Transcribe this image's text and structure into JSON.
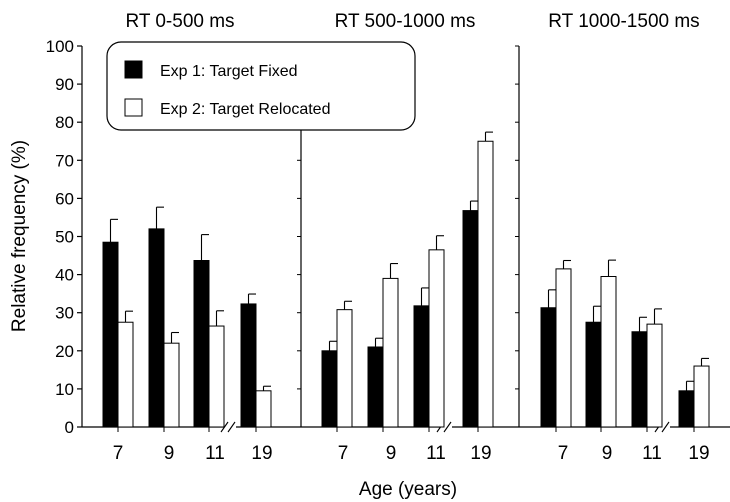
{
  "chart_data": {
    "type": "bar",
    "xlabel": "Age (years)",
    "ylabel": "Relative frequency (%)",
    "ylim": [
      0,
      100
    ],
    "yticks": [
      0,
      10,
      20,
      30,
      40,
      50,
      60,
      70,
      80,
      90,
      100
    ],
    "legend": {
      "position": "top-left",
      "entries": [
        {
          "label": "Exp 1: Target Fixed",
          "color": "#000000"
        },
        {
          "label": "Exp 2: Target Relocated",
          "color": "#ffffff"
        }
      ]
    },
    "series_colors": [
      "#000000",
      "#ffffff"
    ],
    "panels": [
      {
        "title": "RT 0-500 ms",
        "categories": [
          "7",
          "9",
          "11",
          "19"
        ],
        "series": [
          {
            "values": [
              48.5,
              52,
              43.7,
              32.3
            ],
            "error": [
              6,
              5.7,
              6.8,
              2.6
            ]
          },
          {
            "values": [
              27.5,
              22,
              26.5,
              9.5
            ],
            "error": [
              2.9,
              2.8,
              4,
              1.2
            ]
          }
        ]
      },
      {
        "title": "RT 500-1000 ms",
        "categories": [
          "7",
          "9",
          "11",
          "19"
        ],
        "series": [
          {
            "values": [
              20,
              21,
              31.8,
              56.8
            ],
            "error": [
              2.5,
              2.3,
              4.7,
              2.5
            ]
          },
          {
            "values": [
              30.8,
              39,
              46.5,
              75
            ],
            "error": [
              2.2,
              3.9,
              3.7,
              2.4
            ]
          }
        ]
      },
      {
        "title": "RT 1000-1500 ms",
        "categories": [
          "7",
          "9",
          "11",
          "19"
        ],
        "series": [
          {
            "values": [
              31.3,
              27.5,
              25,
              9.5
            ],
            "error": [
              4.7,
              4.2,
              3.8,
              2.5
            ]
          },
          {
            "values": [
              41.5,
              39.5,
              27,
              16
            ],
            "error": [
              2.2,
              4.3,
              4,
              2
            ]
          }
        ]
      }
    ]
  }
}
